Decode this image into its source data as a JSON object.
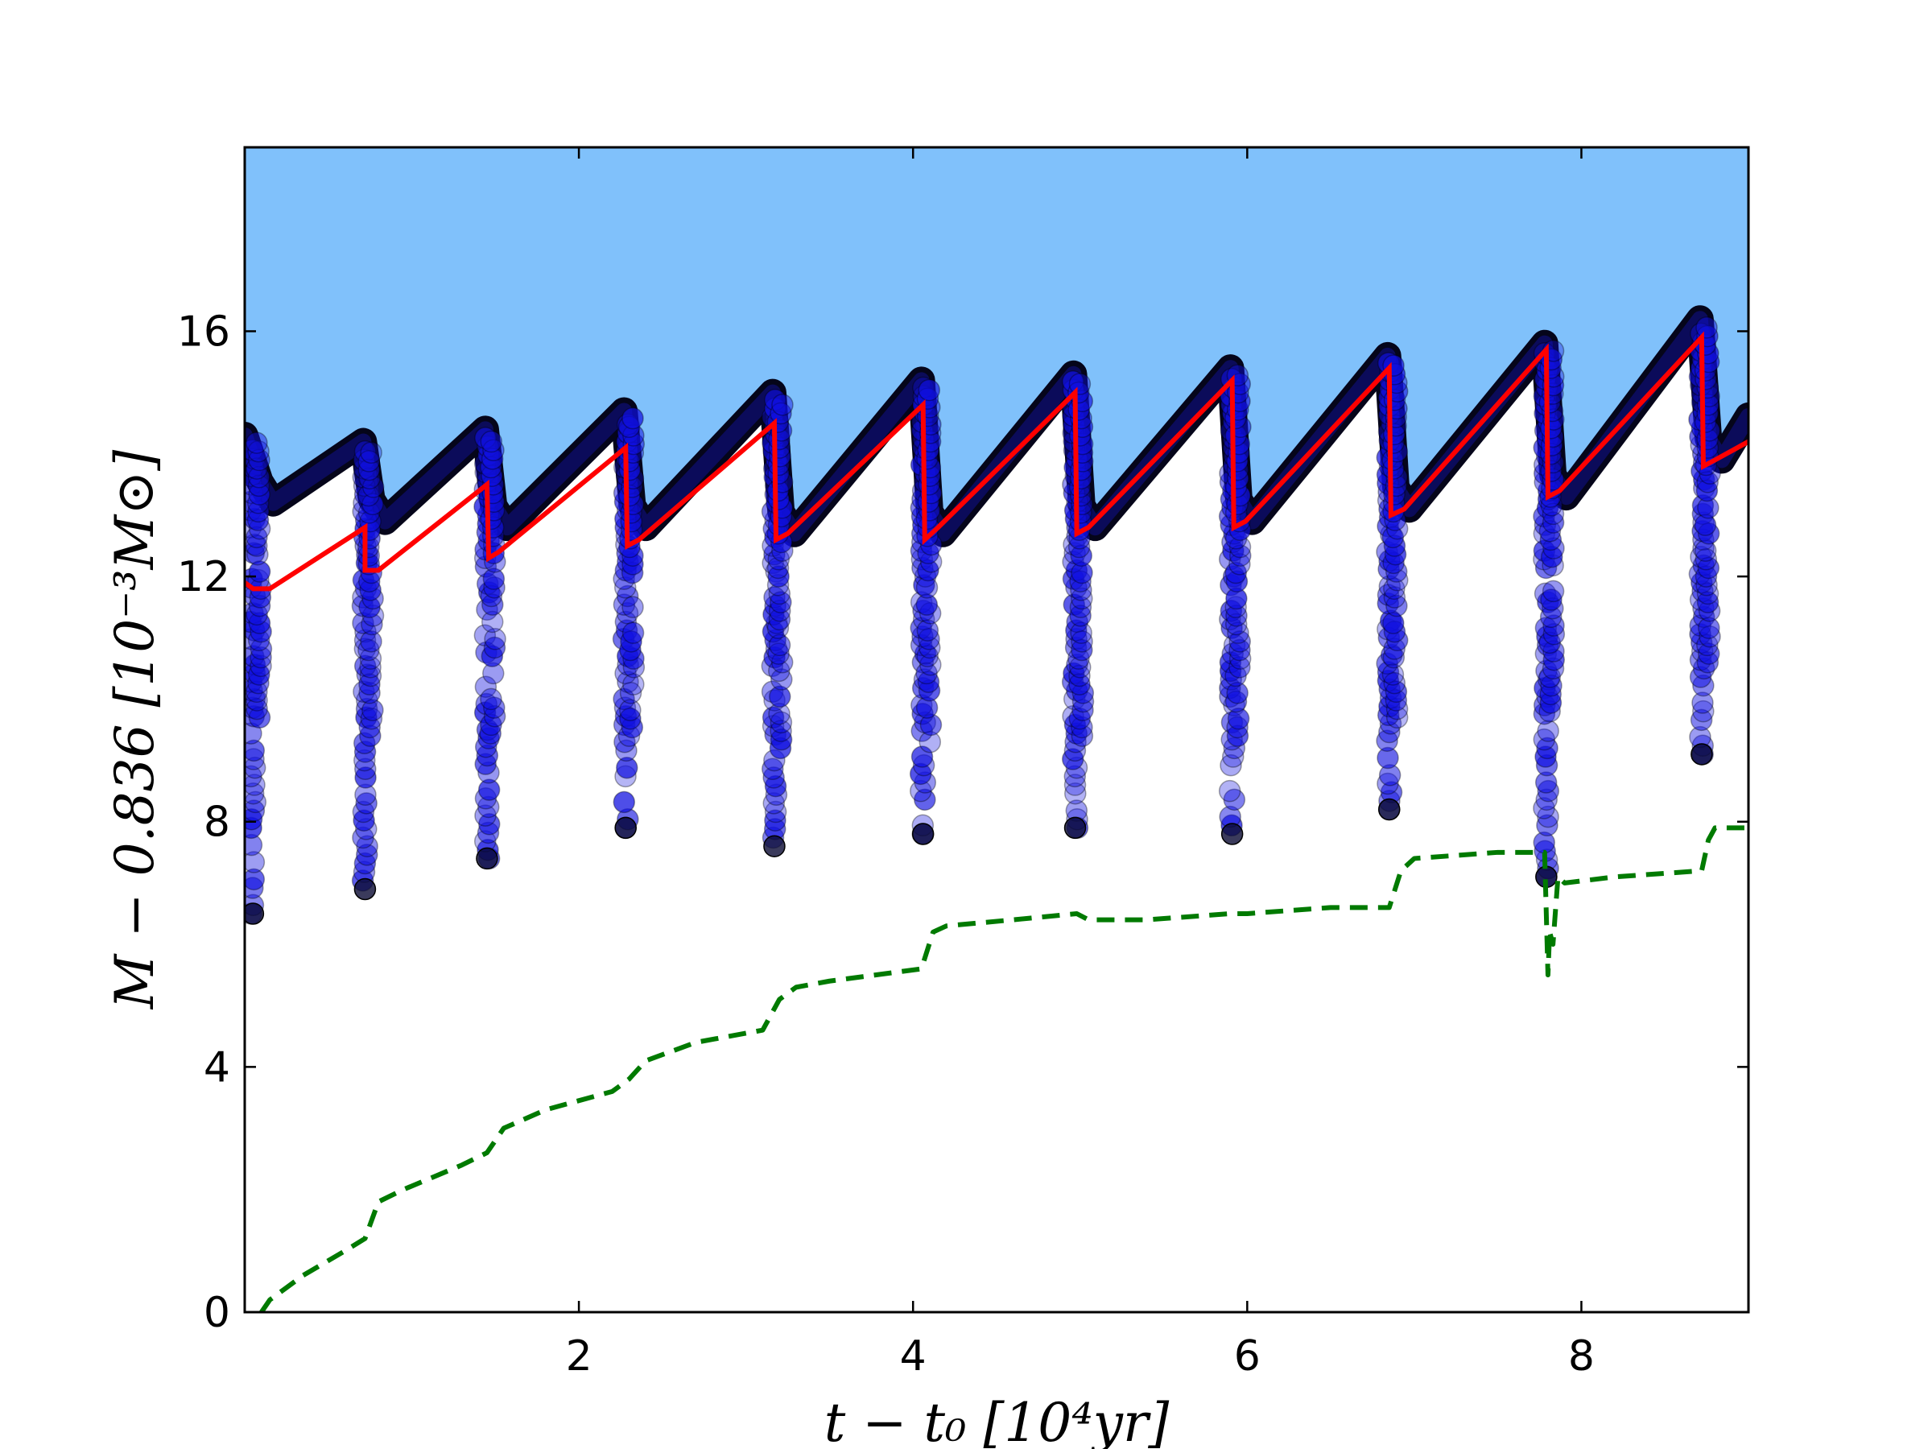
{
  "chart_data": {
    "type": "scatter",
    "title": "",
    "xlabel": "t − t₀ [10⁴yr]",
    "ylabel": "M − 0.836 [10⁻³M⊙]",
    "xlim": [
      0,
      9
    ],
    "ylim": [
      0,
      19
    ],
    "x_ticks": [
      2,
      4,
      6,
      8
    ],
    "y_ticks": [
      0,
      4,
      8,
      12,
      16
    ],
    "grid": false,
    "legend": "none",
    "colors": {
      "fill": "#80c1fb",
      "points": "#1010e0",
      "outline": "#000000",
      "red_line": "#ff0000",
      "green_line": "#007a00"
    },
    "pulses": [
      {
        "t": 0.05,
        "peak": 14.3,
        "trough": 13.2,
        "low": 6.5
      },
      {
        "t": 0.72,
        "peak": 14.2,
        "trough": 12.9,
        "low": 6.9
      },
      {
        "t": 1.45,
        "peak": 14.4,
        "trough": 12.8,
        "low": 7.4
      },
      {
        "t": 2.28,
        "peak": 14.7,
        "trough": 12.8,
        "low": 7.9
      },
      {
        "t": 3.17,
        "peak": 15.0,
        "trough": 12.7,
        "low": 7.6
      },
      {
        "t": 4.06,
        "peak": 15.2,
        "trough": 12.7,
        "low": 7.8
      },
      {
        "t": 4.97,
        "peak": 15.3,
        "trough": 12.8,
        "low": 7.9
      },
      {
        "t": 5.91,
        "peak": 15.4,
        "trough": 12.9,
        "low": 7.8
      },
      {
        "t": 6.85,
        "peak": 15.6,
        "trough": 13.1,
        "low": 8.2
      },
      {
        "t": 7.79,
        "peak": 15.8,
        "trough": 13.3,
        "low": 7.1
      },
      {
        "t": 8.72,
        "peak": 16.2,
        "trough": 13.9,
        "low": 9.1
      }
    ],
    "red_line": {
      "x": [
        0.0,
        0.05,
        0.15,
        0.72,
        0.72,
        0.8,
        1.45,
        1.46,
        1.52,
        2.28,
        2.29,
        2.36,
        3.17,
        3.18,
        3.25,
        4.06,
        4.07,
        4.15,
        4.97,
        4.98,
        5.05,
        5.91,
        5.92,
        5.99,
        6.85,
        6.86,
        6.94,
        7.79,
        7.8,
        7.87,
        8.72,
        8.73,
        8.8,
        9.0
      ],
      "y": [
        11.9,
        11.8,
        11.8,
        12.8,
        12.1,
        12.1,
        13.5,
        12.3,
        12.4,
        14.1,
        12.5,
        12.6,
        14.5,
        12.6,
        12.7,
        14.8,
        12.6,
        12.8,
        15.0,
        12.7,
        12.8,
        15.2,
        12.8,
        12.9,
        15.4,
        13.0,
        13.1,
        15.7,
        13.3,
        13.4,
        15.9,
        13.8,
        13.9,
        14.2
      ]
    },
    "green_line": {
      "x": [
        0.1,
        0.15,
        0.25,
        0.35,
        0.6,
        0.72,
        0.8,
        0.95,
        1.3,
        1.45,
        1.55,
        1.8,
        2.2,
        2.3,
        2.4,
        2.7,
        3.1,
        3.2,
        3.3,
        3.5,
        4.05,
        4.12,
        4.2,
        4.6,
        4.98,
        5.05,
        5.4,
        5.9,
        6.0,
        6.5,
        6.85,
        6.92,
        7.0,
        7.5,
        7.78,
        7.8,
        7.81,
        7.83,
        7.86,
        7.9,
        8.2,
        8.72,
        8.76,
        8.8,
        9.0
      ],
      "y": [
        0.0,
        0.2,
        0.4,
        0.6,
        1.0,
        1.2,
        1.8,
        2.0,
        2.4,
        2.6,
        3.0,
        3.3,
        3.6,
        3.8,
        4.1,
        4.4,
        4.6,
        5.1,
        5.3,
        5.4,
        5.6,
        6.2,
        6.3,
        6.4,
        6.5,
        6.4,
        6.4,
        6.5,
        6.5,
        6.6,
        6.6,
        7.2,
        7.4,
        7.5,
        7.5,
        5.5,
        6.2,
        6.0,
        7.1,
        7.0,
        7.1,
        7.2,
        7.7,
        7.9,
        7.9
      ]
    }
  }
}
